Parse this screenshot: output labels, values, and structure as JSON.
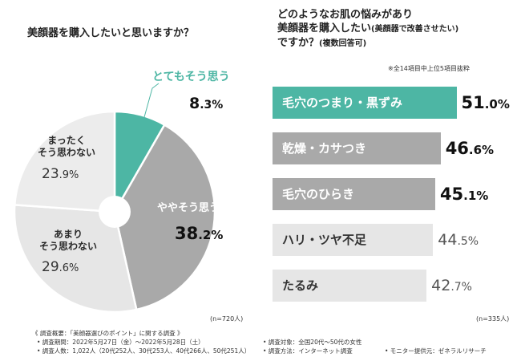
{
  "chart_data": [
    {
      "type": "pie",
      "title": "美顔器を購入したいと思いますか？",
      "slices": [
        {
          "label": "とてもそう思う",
          "value": 8.3,
          "color": "#4db6a4",
          "text_color": "#ffffff"
        },
        {
          "label": "ややそう思う",
          "value": 38.2,
          "color": "#a9a9a9",
          "text_color": "#ffffff"
        },
        {
          "label": "あまり そう思わない",
          "value": 29.6,
          "color": "#e6e6e6",
          "text_color": "#333333"
        },
        {
          "label": "まったく そう思わない",
          "value": 23.9,
          "color": "#ececec",
          "text_color": "#333333"
        }
      ],
      "sample": "(n=720人)"
    },
    {
      "type": "bar",
      "orientation": "horizontal",
      "title_line1": "どのようなお肌の悩みがあり",
      "title_line2": "美顔器を購入したい",
      "title_line2_sub": "(美顔器で改善させたい)",
      "title_line3": "ですか？",
      "title_line3_sub": "(複数回答可)",
      "note": "※全14項目中上位5項目抜粋",
      "categories": [
        "毛穴のつまり・黒ずみ",
        "乾燥・カサつき",
        "毛穴のひらき",
        "ハリ・ツヤ不足",
        "たるみ"
      ],
      "values": [
        51.0,
        46.6,
        45.1,
        44.5,
        42.7
      ],
      "colors": [
        "#4db6a4",
        "#a9a9a9",
        "#a9a9a9",
        "#e6e6e6",
        "#e6e6e6"
      ],
      "label_colors": [
        "#ffffff",
        "#ffffff",
        "#ffffff",
        "#333333",
        "#333333"
      ],
      "sample": "(n=335人)"
    }
  ],
  "footer": {
    "title": "《 調査概要：「美顔器選びのポイント」に関する調査 》",
    "period": "• 調査期間：2022年5月27日（金）〜2022年5月28日（土）",
    "people": "• 調査人数：1,022人（20代252人、30代253人、40代266人、50代251人）",
    "target": "• 調査対象：全国20代〜50代の女性",
    "method": "• 調査方法：インターネット調査",
    "provider": "• モニター提供元：ゼネラルリサーチ"
  }
}
